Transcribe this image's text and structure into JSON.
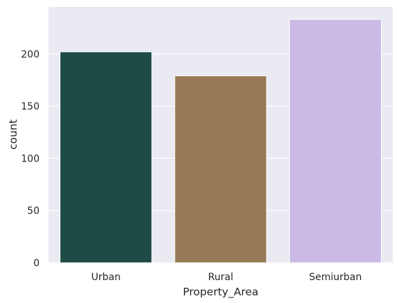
{
  "chart_data": {
    "type": "bar",
    "title": "",
    "xlabel": "Property_Area",
    "ylabel": "count",
    "categories": [
      "Urban",
      "Rural",
      "Semiurban"
    ],
    "values": [
      202,
      179,
      233
    ],
    "colors": [
      "#1f4b46",
      "#977955",
      "#cbb9e6"
    ],
    "ylim": [
      0,
      245
    ],
    "yticks": [
      0,
      50,
      100,
      150,
      200
    ],
    "grid": true,
    "legend": "none",
    "background": "#eaeaf2",
    "grid_color": "#ffffff"
  }
}
